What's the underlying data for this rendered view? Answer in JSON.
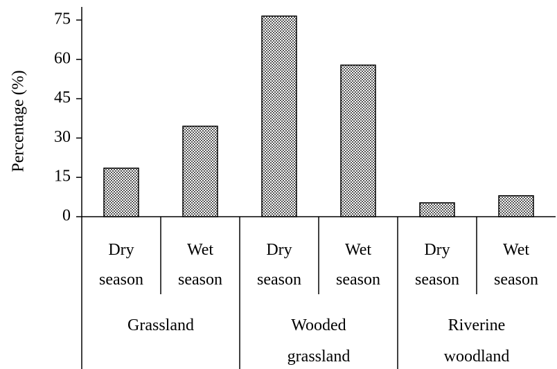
{
  "chart_data": {
    "type": "bar",
    "y_label": "Percentage (%)",
    "categories": [
      "Dry season",
      "Wet season",
      "Dry season",
      "Wet season",
      "Dry season",
      "Wet season"
    ],
    "groups": [
      "Grassland",
      "Wooded grassland",
      "Riverine woodland"
    ],
    "values": [
      18.5,
      34.5,
      76.5,
      57.8,
      5.3,
      8
    ],
    "color": "#a0a0a0",
    "ylim": [
      0,
      80
    ],
    "yticks": [
      0,
      15,
      30,
      45,
      60,
      75
    ],
    "grid": false
  }
}
